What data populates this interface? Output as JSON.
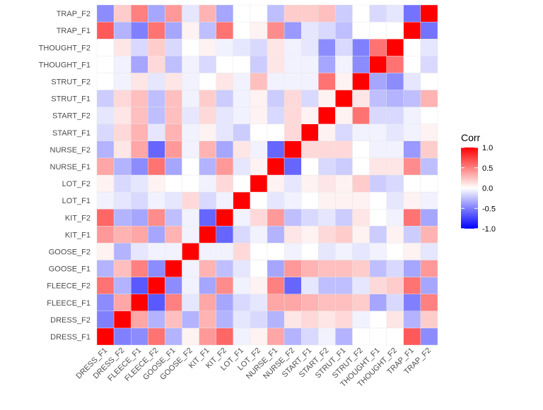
{
  "chart_data": {
    "type": "heatmap",
    "title": "",
    "xlabel": "",
    "ylabel": "",
    "variables": [
      "DRESS_F1",
      "DRESS_F2",
      "FLEECE_F1",
      "FLEECE_F2",
      "GOOSE_F1",
      "GOOSE_F2",
      "KIT_F1",
      "KIT_F2",
      "LOT_F1",
      "LOT_F2",
      "NURSE_F1",
      "NURSE_F2",
      "START_F1",
      "START_F2",
      "STRUT_F1",
      "STRUT_F2",
      "THOUGHT_F1",
      "THOUGHT_F2",
      "TRAP_F1",
      "TRAP_F2"
    ],
    "y_labels": [
      "DRESS_F1",
      "DRESS_F2",
      "FLEECE_F1",
      "FLEECE_F2",
      "GOOSE_F1",
      "GOOSE_F2",
      "KIT_F1",
      "KIT_F2",
      "LOT_F1",
      "LOT_F2",
      "NURSE_F1",
      "NURSE_F2",
      "START_F1",
      "START_F2",
      "STRUT_F1",
      "STRUT_F2",
      "THOUGHT_F1",
      "THOUGHT_F2",
      "TRAP_F1",
      "TRAP_F2"
    ],
    "x_labels": [
      "DRESS_F1",
      "DRESS_F2",
      "FLEECE_F1",
      "FLEECE_F2",
      "GOOSE_F1",
      "GOOSE_F2",
      "KIT_F1",
      "KIT_F2",
      "LOT_F1",
      "LOT_F2",
      "NURSE_F1",
      "NURSE_F2",
      "START_F1",
      "START_F2",
      "STRUT_F1",
      "STRUT_F2",
      "THOUGHT_F1",
      "THOUGHT_F2",
      "TRAP_F1",
      "TRAP_F2"
    ],
    "matrix": [
      [
        1.0,
        -0.5,
        -0.45,
        0.55,
        -0.3,
        0.05,
        0.4,
        0.6,
        -0.05,
        0.05,
        0.35,
        -0.3,
        -0.15,
        -0.05,
        -0.3,
        0.0,
        0.0,
        0.0,
        0.65,
        -0.45
      ],
      [
        -0.5,
        1.0,
        0.35,
        -0.3,
        0.25,
        -0.3,
        0.3,
        -0.3,
        -0.1,
        -0.15,
        -0.3,
        0.1,
        0.15,
        0.1,
        0.15,
        -0.05,
        0.0,
        0.1,
        -0.3,
        0.2
      ],
      [
        -0.45,
        0.35,
        1.0,
        -0.65,
        0.5,
        -0.1,
        0.35,
        -0.35,
        -0.15,
        -0.1,
        0.35,
        0.35,
        0.3,
        0.25,
        0.25,
        0.2,
        -0.35,
        -0.15,
        -0.5,
        0.5
      ],
      [
        0.55,
        -0.3,
        -0.65,
        1.0,
        -0.45,
        -0.05,
        -0.35,
        0.45,
        -0.05,
        0.05,
        0.5,
        -0.6,
        -0.1,
        -0.25,
        -0.25,
        -0.1,
        0.15,
        0.2,
        0.55,
        -0.35
      ],
      [
        -0.3,
        0.25,
        0.5,
        -0.45,
        1.0,
        -0.05,
        0.3,
        -0.25,
        -0.1,
        0.0,
        -0.35,
        0.4,
        0.3,
        0.25,
        0.25,
        0.2,
        -0.25,
        -0.15,
        -0.35,
        0.4
      ],
      [
        0.05,
        -0.3,
        -0.1,
        -0.05,
        -0.05,
        1.0,
        -0.05,
        -0.05,
        0.15,
        0.0,
        0.0,
        -0.05,
        0.0,
        -0.1,
        -0.05,
        -0.1,
        -0.05,
        0.0,
        0.05,
        -0.1
      ],
      [
        0.4,
        0.3,
        0.35,
        -0.35,
        0.3,
        -0.05,
        1.0,
        -0.6,
        -0.15,
        -0.05,
        -0.3,
        0.1,
        0.05,
        0.15,
        0.2,
        0.05,
        -0.2,
        0.05,
        -0.2,
        0.3
      ],
      [
        0.6,
        -0.3,
        -0.35,
        0.45,
        -0.25,
        -0.05,
        -0.6,
        1.0,
        -0.05,
        0.15,
        0.4,
        -0.25,
        -0.15,
        -0.1,
        -0.2,
        0.1,
        0.0,
        -0.05,
        0.55,
        -0.35
      ],
      [
        -0.05,
        -0.1,
        -0.15,
        -0.05,
        -0.1,
        0.15,
        -0.15,
        -0.05,
        1.0,
        0.0,
        -0.1,
        -0.05,
        0.0,
        0.05,
        0.05,
        0.05,
        0.0,
        -0.1,
        0.05,
        -0.05
      ],
      [
        0.05,
        -0.15,
        -0.1,
        0.05,
        0.0,
        0.0,
        -0.05,
        0.15,
        0.0,
        1.0,
        0.05,
        -0.1,
        0.05,
        0.1,
        0.05,
        0.2,
        -0.2,
        -0.15,
        0.0,
        0.0
      ],
      [
        0.35,
        -0.3,
        -0.45,
        0.55,
        -0.35,
        0.0,
        -0.3,
        0.4,
        -0.1,
        0.05,
        1.0,
        -0.6,
        0.0,
        -0.15,
        -0.2,
        0.0,
        0.1,
        0.1,
        0.45,
        -0.25
      ],
      [
        -0.3,
        0.1,
        0.35,
        -0.6,
        0.4,
        -0.05,
        0.3,
        -0.35,
        0.1,
        -0.05,
        -0.6,
        1.0,
        0.15,
        0.15,
        0.15,
        0.0,
        -0.05,
        -0.05,
        -0.4,
        0.2
      ],
      [
        -0.15,
        0.15,
        0.3,
        -0.1,
        0.3,
        -0.05,
        0.05,
        -0.1,
        -0.2,
        0.0,
        0.0,
        0.15,
        1.0,
        0.05,
        -0.15,
        -0.05,
        -0.05,
        -0.1,
        -0.05,
        0.05
      ],
      [
        -0.1,
        0.1,
        0.25,
        -0.25,
        0.25,
        -0.1,
        0.15,
        -0.1,
        -0.05,
        0.05,
        -0.15,
        0.15,
        0.05,
        1.0,
        0.05,
        0.55,
        -0.15,
        -0.15,
        -0.05,
        0.0
      ],
      [
        -0.2,
        0.15,
        0.25,
        -0.25,
        0.25,
        -0.05,
        0.2,
        -0.2,
        -0.05,
        0.05,
        -0.2,
        0.15,
        -0.15,
        0.05,
        1.0,
        0.1,
        -0.25,
        -0.3,
        -0.25,
        0.3
      ],
      [
        0.0,
        -0.05,
        0.1,
        -0.1,
        0.1,
        -0.05,
        0.0,
        0.1,
        -0.05,
        0.25,
        -0.05,
        -0.05,
        -0.05,
        0.55,
        0.05,
        1.0,
        -0.35,
        -0.45,
        -0.1,
        0.0
      ],
      [
        0.0,
        -0.05,
        -0.35,
        0.15,
        -0.25,
        -0.05,
        -0.15,
        0.0,
        0.0,
        -0.2,
        0.1,
        -0.05,
        -0.05,
        -0.35,
        -0.05,
        -0.45,
        1.0,
        0.55,
        0.0,
        -0.15
      ],
      [
        0.0,
        0.1,
        -0.15,
        0.2,
        -0.15,
        0.0,
        0.05,
        -0.05,
        -0.1,
        -0.15,
        0.1,
        -0.05,
        -0.1,
        -0.45,
        -0.15,
        -0.5,
        0.55,
        1.0,
        0.0,
        -0.1
      ],
      [
        0.65,
        -0.3,
        -0.5,
        0.55,
        -0.35,
        0.05,
        -0.25,
        0.55,
        0.0,
        0.05,
        0.45,
        -0.4,
        -0.1,
        -0.15,
        -0.25,
        0.0,
        0.0,
        0.0,
        1.0,
        -0.55
      ],
      [
        -0.45,
        0.2,
        0.5,
        -0.35,
        0.4,
        -0.1,
        0.3,
        -0.35,
        0.0,
        0.0,
        -0.25,
        0.2,
        0.2,
        0.25,
        -0.2,
        0.0,
        -0.15,
        -0.1,
        -0.55,
        1.0
      ]
    ],
    "value_range": [
      -1.0,
      1.0
    ],
    "colors": {
      "low": "#0000FF",
      "mid": "#FFFFFF",
      "high": "#FF0000",
      "text": "#4D4D4D",
      "title": "#000000"
    },
    "legend": {
      "title": "Corr",
      "position": "right",
      "ticks": [
        1.0,
        0.5,
        0.0,
        -0.5,
        -1.0
      ],
      "tick_labels": [
        "1.0",
        "0.5",
        "0.0",
        "-0.5",
        "-1.0"
      ]
    }
  }
}
